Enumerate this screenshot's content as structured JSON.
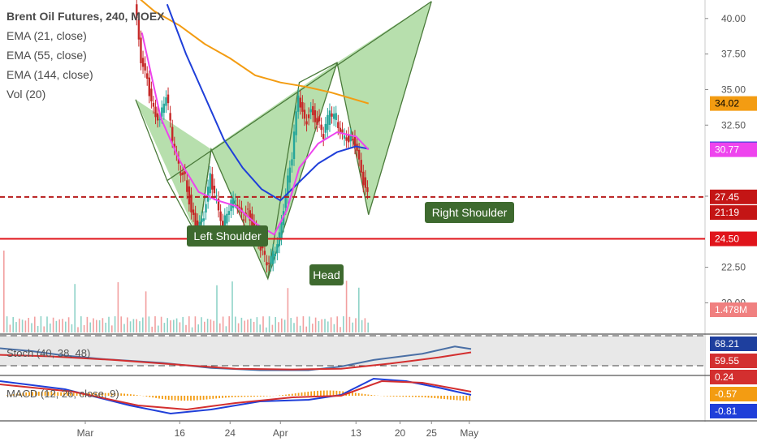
{
  "chart_data": {
    "type": "line",
    "title": "Brent Oil Futures, 240, MOEX",
    "legend": [
      "EMA (21, close)",
      "EMA (55, close)",
      "EMA (144, close)",
      "Vol (20)"
    ],
    "x_ticks": [
      "Mar",
      "16",
      "24",
      "Apr",
      "13",
      "20",
      "25",
      "May"
    ],
    "y_ticks": [
      "40.00",
      "37.50",
      "35.00",
      "32.50",
      "27.50",
      "22.50",
      "20.00"
    ],
    "y_range": [
      17.8,
      41.3
    ],
    "price_badges": [
      {
        "label": "34.02",
        "value": 34.02,
        "color": "#f39c12",
        "text_color": "#000000"
      },
      {
        "label": "30.83",
        "value": 30.83,
        "color": "#1f3fd9",
        "text_color": "#ffffff"
      },
      {
        "label": "30.77",
        "value": 30.77,
        "color": "#ee44ee",
        "text_color": "#ffffff"
      },
      {
        "label": "27.45",
        "value": 27.45,
        "color": "#c41515",
        "text_color": "#ffffff"
      },
      {
        "label": "21:19",
        "value": 26.35,
        "color": "#c41515",
        "text_color": "#ffffff"
      },
      {
        "label": "24.50",
        "value": 24.5,
        "color": "#e0141b",
        "text_color": "#ffffff"
      },
      {
        "label": "1.478M",
        "value": 18.6,
        "color": "#f08080",
        "text_color": "#ffffff"
      }
    ],
    "horizontal_lines": [
      {
        "name": "current-price",
        "value": 27.45,
        "style": "dashed",
        "color": "#b71c1c"
      },
      {
        "name": "neckline",
        "value": 24.5,
        "style": "solid",
        "color": "#e0141b"
      }
    ],
    "pattern_labels": [
      "Left Shoulder",
      "Head",
      "Right Shoulder"
    ],
    "pattern": {
      "type": "head-and-shoulders",
      "points": [
        {
          "date": "Mar 9",
          "price": 34.3
        },
        {
          "date": "Mar 14",
          "price": 28.6
        },
        {
          "date": "Mar 19",
          "price": 24.5
        },
        {
          "date": "Mar 21",
          "price": 30.8
        },
        {
          "date": "Mar 30",
          "price": 21.7
        },
        {
          "date": "Apr 4",
          "price": 35.5
        },
        {
          "date": "Apr 10",
          "price": 36.9
        },
        {
          "date": "Apr 15",
          "price": 26.2
        },
        {
          "date": "Apr 25",
          "price": 41.2
        }
      ]
    },
    "stochastic": {
      "label": "Stoch (40, 38, 48)",
      "badges": [
        {
          "label": "68.21",
          "color": "#1e3f9e"
        },
        {
          "label": "59.55",
          "color": "#d32f2f"
        }
      ]
    },
    "macd": {
      "label": "MACD (12, 26, close, 9)",
      "badges": [
        {
          "label": "0.24",
          "color": "#d32f2f"
        },
        {
          "label": "-0.57",
          "color": "#f39c12"
        },
        {
          "label": "-0.81",
          "color": "#1f3fd9"
        }
      ]
    }
  }
}
